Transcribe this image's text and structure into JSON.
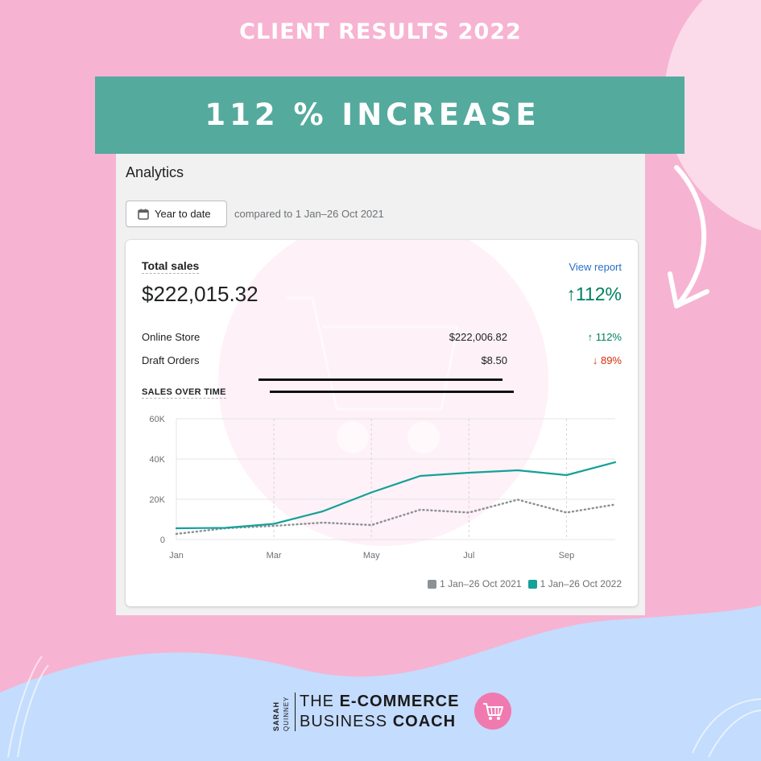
{
  "headline": "CLIENT RESULTS 2022",
  "banner": {
    "text": "112 % INCREASE"
  },
  "analytics": {
    "title": "Analytics",
    "date_button_label": "Year to date",
    "compare_text": "compared to 1 Jan–26 Oct 2021",
    "card": {
      "metric_label": "Total sales",
      "view_report": "View report",
      "total_value": "$222,015.32",
      "total_change": "↑112%",
      "rows": [
        {
          "label": "Online Store",
          "value": "$222,006.82",
          "change": "↑ 112%",
          "direction": "up"
        },
        {
          "label": "Draft Orders",
          "value": "$8.50",
          "change": "↓ 89%",
          "direction": "down"
        }
      ],
      "section_label": "SALES OVER TIME",
      "legend": [
        {
          "label": "1 Jan–26 Oct 2021",
          "color": "#8c9196"
        },
        {
          "label": "1 Jan–26 Oct 2022",
          "color": "#14a19a"
        }
      ]
    }
  },
  "chart_data": {
    "type": "line",
    "x": [
      1,
      2,
      3,
      4,
      5,
      6,
      7,
      8,
      9,
      10
    ],
    "x_ticks": [
      {
        "x": 1,
        "label": "Jan"
      },
      {
        "x": 3,
        "label": "Mar"
      },
      {
        "x": 5,
        "label": "May"
      },
      {
        "x": 7,
        "label": "Jul"
      },
      {
        "x": 9,
        "label": "Sep"
      }
    ],
    "y_ticks": [
      {
        "y": 0,
        "label": "0"
      },
      {
        "y": 20000,
        "label": "20K"
      },
      {
        "y": 40000,
        "label": "40K"
      },
      {
        "y": 60000,
        "label": "60K"
      }
    ],
    "ylim": [
      0,
      60000
    ],
    "xlim": [
      1,
      10
    ],
    "series": [
      {
        "name": "1 Jan–26 Oct 2021",
        "color": "#8c9196",
        "style": "dotted",
        "values": [
          2800,
          5600,
          6800,
          8400,
          7200,
          14800,
          13400,
          19800,
          13400,
          17400
        ]
      },
      {
        "name": "1 Jan–26 Oct 2022",
        "color": "#14a19a",
        "style": "solid",
        "values": [
          5600,
          5800,
          7800,
          14000,
          23400,
          31600,
          33200,
          34400,
          32000,
          38400
        ]
      }
    ],
    "grid": true,
    "legend_position": "bottom-right"
  },
  "footer": {
    "vertical_name_1": "SARAH",
    "vertical_name_2": "QUINNEY",
    "line1_regular": "THE ",
    "line1_bold": "E-COMMERCE",
    "line2_regular": "BUSINESS ",
    "line2_bold": "COACH"
  },
  "colors": {
    "background_pink": "#f7b3d2",
    "banner_teal": "#54aa9d",
    "blue_wave": "#c4dcfd",
    "accent_up": "#008060",
    "accent_down": "#d72c0d"
  }
}
